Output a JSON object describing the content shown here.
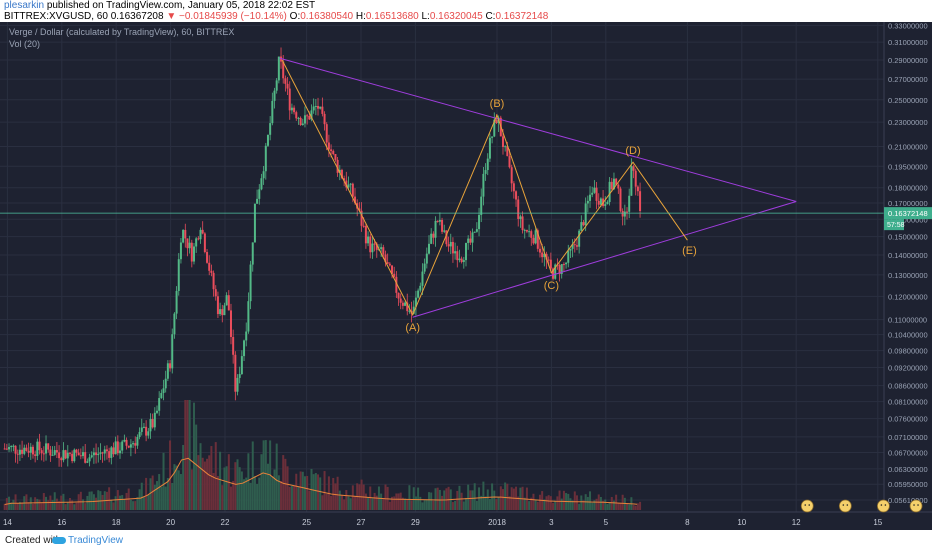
{
  "header": {
    "author": "plesarkin",
    "published": "published on TradingView.com, January 05, 2018 22:02 EST",
    "symbol": "BITTREX:XVGUSD, 60",
    "last": "0.16367208",
    "change": "−0.01845939 (−10.14%)",
    "o_label": "O:",
    "o": "0.16380540",
    "h_label": "H:",
    "h": "0.16513680",
    "l_label": "L:",
    "l": "0.16320045",
    "c_label": "C:",
    "c": "0.16372148"
  },
  "legend": {
    "title": "Verge / Dollar (calculated by TradingView), 60, BITTREX",
    "vol": "Vol (20)"
  },
  "colors": {
    "background": "#1e2231",
    "up": "#53b987",
    "down": "#eb4d5c",
    "triangle": "#9f3ddd",
    "wave": "#e8a33a",
    "price_line": "#4fc3a1",
    "ma": "#e8823a"
  },
  "chart_data": {
    "type": "candlestick",
    "y_axis_ticks": [
      "0.33000000",
      "0.31000000",
      "0.29000000",
      "0.27000000",
      "0.25000000",
      "0.23000000",
      "0.21000000",
      "0.19500000",
      "0.18000000",
      "0.17000000",
      "0.16000000",
      "0.15000000",
      "0.14000000",
      "0.13000000",
      "0.12000000",
      "0.11000000",
      "0.10400000",
      "0.09800000",
      "0.09200000",
      "0.08600000",
      "0.08100000",
      "0.07600000",
      "0.07100000",
      "0.06700000",
      "0.06300000",
      "0.05950000",
      "0.05610000"
    ],
    "y_axis_values": [
      0.33,
      0.31,
      0.29,
      0.27,
      0.25,
      0.23,
      0.21,
      0.195,
      0.18,
      0.17,
      0.16,
      0.15,
      0.14,
      0.13,
      0.12,
      0.11,
      0.104,
      0.098,
      0.092,
      0.086,
      0.081,
      0.076,
      0.071,
      0.067,
      0.063,
      0.0595,
      0.0561
    ],
    "y_scale": "log",
    "x_axis_ticks": [
      "14",
      "16",
      "18",
      "20",
      "22",
      "25",
      "27",
      "29",
      "2018",
      "3",
      "5",
      "8",
      "10",
      "12",
      "15"
    ],
    "x_axis_days": [
      -18,
      -16,
      -14,
      -12,
      -10,
      -7,
      -5,
      -3,
      0,
      2,
      4,
      7,
      9,
      11,
      14
    ],
    "x_tick_label_unit": "day of month (Dec 2017 / Jan 2018)",
    "current_price": "0.16372148",
    "countdown": "57:58",
    "wave_points": [
      {
        "label": "(A)",
        "day": -3.1,
        "price": 0.112
      },
      {
        "label": "(B)",
        "day": 0.0,
        "price": 0.236
      },
      {
        "label": "(C)",
        "day": 2.0,
        "price": 0.131
      },
      {
        "label": "(D)",
        "day": 5.0,
        "price": 0.198
      },
      {
        "label": "(E)",
        "day": 7.0,
        "price": 0.148
      }
    ],
    "wave_path_extra": {
      "day": -7.9,
      "price": 0.29
    },
    "triangle_upper": [
      {
        "day": -8.0,
        "price": 0.292
      },
      {
        "day": 11.0,
        "price": 0.171
      }
    ],
    "triangle_lower": [
      {
        "day": -3.1,
        "price": 0.111
      },
      {
        "day": 11.0,
        "price": 0.171
      }
    ],
    "price_anchors": [
      {
        "day": -17.0,
        "price": 0.068
      },
      {
        "day": -15.0,
        "price": 0.066
      },
      {
        "day": -13.5,
        "price": 0.069
      },
      {
        "day": -12.6,
        "price": 0.075
      },
      {
        "day": -12.0,
        "price": 0.095
      },
      {
        "day": -11.6,
        "price": 0.155
      },
      {
        "day": -11.2,
        "price": 0.14
      },
      {
        "day": -10.9,
        "price": 0.158
      },
      {
        "day": -10.5,
        "price": 0.128
      },
      {
        "day": -10.2,
        "price": 0.112
      },
      {
        "day": -9.9,
        "price": 0.12
      },
      {
        "day": -9.6,
        "price": 0.083
      },
      {
        "day": -9.2,
        "price": 0.11
      },
      {
        "day": -8.9,
        "price": 0.168
      },
      {
        "day": -8.5,
        "price": 0.205
      },
      {
        "day": -8.0,
        "price": 0.29
      },
      {
        "day": -7.6,
        "price": 0.245
      },
      {
        "day": -7.1,
        "price": 0.23
      },
      {
        "day": -6.6,
        "price": 0.245
      },
      {
        "day": -6.0,
        "price": 0.2
      },
      {
        "day": -5.3,
        "price": 0.175
      },
      {
        "day": -4.7,
        "price": 0.145
      },
      {
        "day": -4.2,
        "price": 0.14
      },
      {
        "day": -3.6,
        "price": 0.12
      },
      {
        "day": -3.1,
        "price": 0.112
      },
      {
        "day": -2.6,
        "price": 0.14
      },
      {
        "day": -2.2,
        "price": 0.16
      },
      {
        "day": -1.8,
        "price": 0.145
      },
      {
        "day": -1.3,
        "price": 0.14
      },
      {
        "day": -0.8,
        "price": 0.15
      },
      {
        "day": -0.4,
        "price": 0.2
      },
      {
        "day": 0.0,
        "price": 0.236
      },
      {
        "day": 0.4,
        "price": 0.195
      },
      {
        "day": 0.9,
        "price": 0.155
      },
      {
        "day": 1.4,
        "price": 0.15
      },
      {
        "day": 2.0,
        "price": 0.131
      },
      {
        "day": 2.5,
        "price": 0.135
      },
      {
        "day": 3.0,
        "price": 0.15
      },
      {
        "day": 3.5,
        "price": 0.18
      },
      {
        "day": 3.9,
        "price": 0.17
      },
      {
        "day": 4.3,
        "price": 0.185
      },
      {
        "day": 4.7,
        "price": 0.16
      },
      {
        "day": 5.0,
        "price": 0.198
      },
      {
        "day": 5.3,
        "price": 0.164
      }
    ],
    "volume_anchors": [
      {
        "day": -18,
        "v": 0.12
      },
      {
        "day": -15,
        "v": 0.15
      },
      {
        "day": -13,
        "v": 0.22
      },
      {
        "day": -12,
        "v": 0.55
      },
      {
        "day": -11.5,
        "v": 1.0
      },
      {
        "day": -10.5,
        "v": 0.6
      },
      {
        "day": -9.5,
        "v": 0.45
      },
      {
        "day": -8.5,
        "v": 0.7
      },
      {
        "day": -8,
        "v": 0.5
      },
      {
        "day": -6,
        "v": 0.28
      },
      {
        "day": -4,
        "v": 0.2
      },
      {
        "day": -2,
        "v": 0.18
      },
      {
        "day": 0,
        "v": 0.24
      },
      {
        "day": 2,
        "v": 0.16
      },
      {
        "day": 4,
        "v": 0.14
      },
      {
        "day": 5.3,
        "v": 0.1
      }
    ]
  }
}
